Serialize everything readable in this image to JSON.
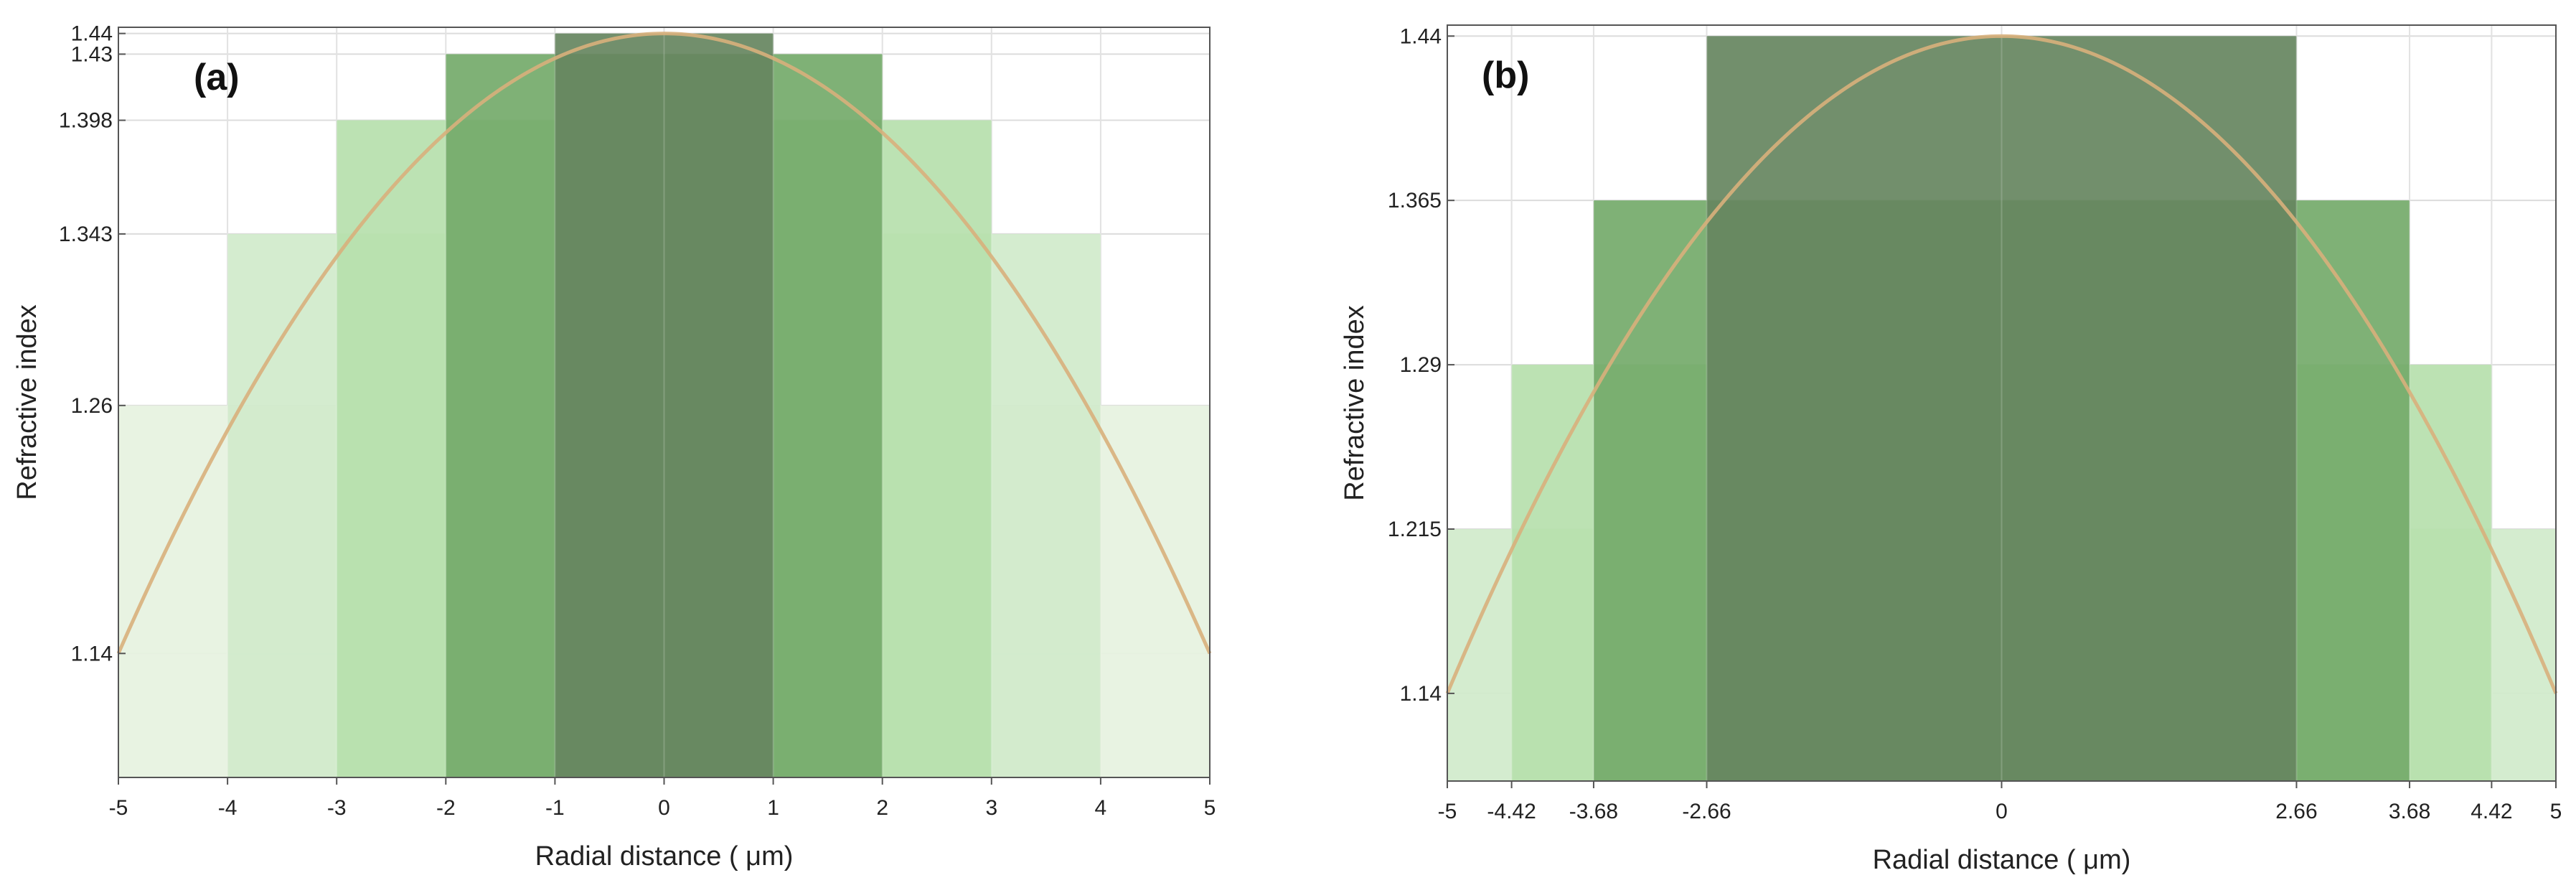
{
  "colors": {
    "curve": "#D8B07C",
    "grid": "#DCDCDC",
    "axis": "#555555",
    "step_fills": [
      "#E6F2E0",
      "#D0EACB",
      "#B6E0AC",
      "#74AA6A",
      "#668560"
    ]
  },
  "chart_data": [
    {
      "type": "bar",
      "panel_label": "(a)",
      "xlabel": "Radial distance ( μm)",
      "ylabel": "Refractive index",
      "xlim": [
        -5,
        5
      ],
      "ylim": [
        1.08,
        1.443
      ],
      "x_ticks": [
        "-5",
        "-4",
        "-3",
        "-2",
        "-1",
        "0",
        "1",
        "2",
        "3",
        "4",
        "5"
      ],
      "y_ticks": [
        "1.14",
        "1.26",
        "1.343",
        "1.398",
        "1.43",
        "1.44"
      ],
      "steps": [
        {
          "half_width": 5,
          "value": 1.26
        },
        {
          "half_width": 4,
          "value": 1.343
        },
        {
          "half_width": 3,
          "value": 1.398
        },
        {
          "half_width": 2,
          "value": 1.43
        },
        {
          "half_width": 1,
          "value": 1.44
        }
      ],
      "curve": {
        "type": "parabola",
        "peak": 1.44,
        "edge": 1.14,
        "x_edge": 5
      }
    },
    {
      "type": "bar",
      "panel_label": "(b)",
      "xlabel": "Radial distance ( μm)",
      "ylabel": "Refractive index",
      "xlim": [
        -5,
        5
      ],
      "ylim": [
        1.1,
        1.445
      ],
      "x_ticks": [
        "-5",
        "-4.42",
        "-3.68",
        "-2.66",
        "0",
        "2.66",
        "3.68",
        "4.42",
        "5"
      ],
      "y_ticks": [
        "1.14",
        "1.215",
        "1.29",
        "1.365",
        "1.44"
      ],
      "steps": [
        {
          "half_width": 5,
          "value": 1.215
        },
        {
          "half_width": 4.42,
          "value": 1.29
        },
        {
          "half_width": 3.68,
          "value": 1.365
        },
        {
          "half_width": 2.66,
          "value": 1.44
        }
      ],
      "curve": {
        "type": "parabola",
        "peak": 1.44,
        "edge": 1.14,
        "x_edge": 5
      }
    }
  ]
}
